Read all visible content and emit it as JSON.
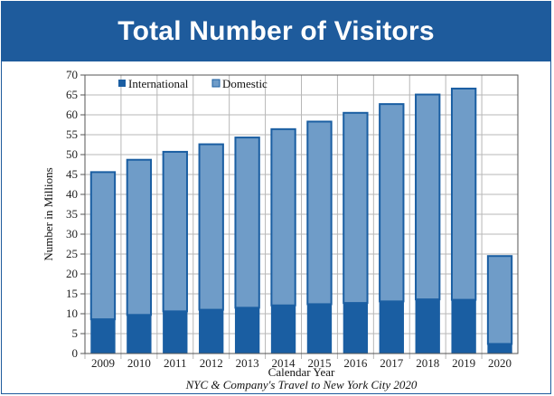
{
  "banner": {
    "title": "Total Number of Visitors"
  },
  "source_note": "NYC & Company's Travel to New York City 2020",
  "colors": {
    "banner": "#1e5b9c",
    "international": "#1a5ea2",
    "domestic": "#6f9cc8",
    "bar_outline": "#1a5ea2"
  },
  "chart_data": {
    "type": "bar",
    "stacked": true,
    "title": "Total Number of Visitors",
    "xlabel": "Calendar Year",
    "ylabel": "Number in Millions",
    "ylim": [
      0,
      70
    ],
    "yticks": [
      0,
      5,
      10,
      15,
      20,
      25,
      30,
      35,
      40,
      45,
      50,
      55,
      60,
      65,
      70
    ],
    "grid": true,
    "legend_position": "top-left",
    "categories": [
      "2009",
      "2010",
      "2011",
      "2012",
      "2013",
      "2014",
      "2015",
      "2016",
      "2017",
      "2018",
      "2019",
      "2020"
    ],
    "series": [
      {
        "name": "International",
        "values": [
          8.6,
          9.7,
          10.6,
          11.0,
          11.5,
          12.1,
          12.4,
          12.7,
          13.1,
          13.6,
          13.5,
          2.4
        ]
      },
      {
        "name": "Domestic",
        "values": [
          37.0,
          39.0,
          40.1,
          41.6,
          42.8,
          44.3,
          45.9,
          47.8,
          49.6,
          51.5,
          53.1,
          22.1
        ]
      }
    ]
  }
}
